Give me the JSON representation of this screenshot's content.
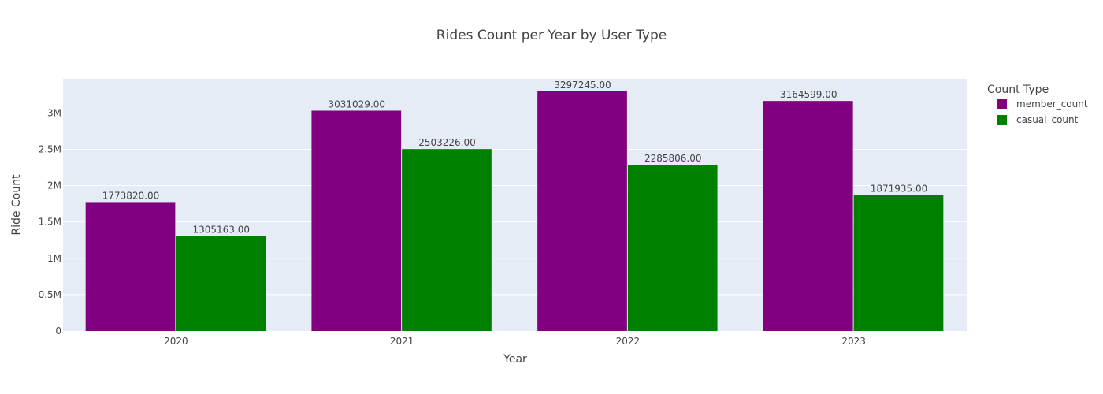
{
  "chart_data": {
    "type": "bar",
    "title": "Rides Count per Year by User Type",
    "xlabel": "Year",
    "ylabel": "Ride Count",
    "categories": [
      "2020",
      "2021",
      "2022",
      "2023"
    ],
    "series": [
      {
        "name": "member_count",
        "color": "#800080",
        "values": [
          1773820,
          3031029,
          3297245,
          3164599
        ],
        "labels": [
          "1773820.00",
          "3031029.00",
          "3297245.00",
          "3164599.00"
        ]
      },
      {
        "name": "casual_count",
        "color": "#008000",
        "values": [
          1305163,
          2503226,
          2285806,
          1871935
        ],
        "labels": [
          "1305163.00",
          "2503226.00",
          "2285806.00",
          "1871935.00"
        ]
      }
    ],
    "ylim": [
      0,
      3470000
    ],
    "yticks": [
      0,
      500000,
      1000000,
      1500000,
      2000000,
      2500000,
      3000000
    ],
    "ytick_labels": [
      "0",
      "0.5M",
      "1M",
      "1.5M",
      "2M",
      "2.5M",
      "3M"
    ],
    "legend": {
      "title": "Count Type",
      "position": "top-right"
    },
    "plot_bg": "#E5ECF6",
    "grid": true
  }
}
